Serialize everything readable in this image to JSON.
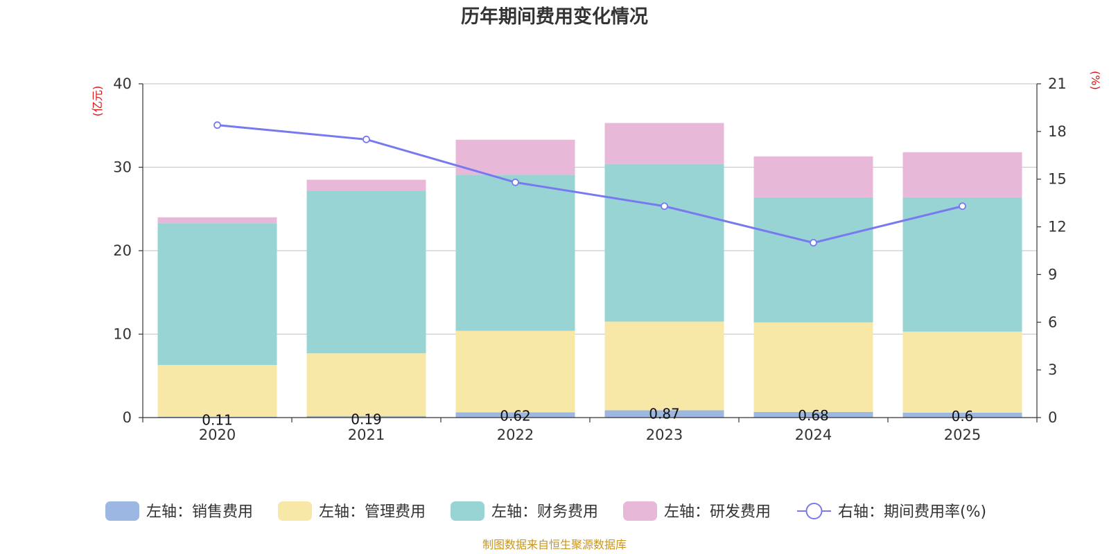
{
  "chart_data": {
    "type": "bar",
    "stacked": true,
    "title": "历年期间费用变化情况",
    "categories": [
      "2020",
      "2021",
      "2022",
      "2023",
      "2024",
      "2025"
    ],
    "left_axis": {
      "unit": "(亿元)",
      "ylim": [
        0,
        40
      ],
      "ticks": [
        0,
        10,
        20,
        30,
        40
      ]
    },
    "right_axis": {
      "unit": "(%)",
      "ylim": [
        0,
        21
      ],
      "ticks": [
        0,
        3,
        6,
        9,
        12,
        15,
        18,
        21
      ]
    },
    "series": [
      {
        "name": "左轴：销售费用",
        "axis": "left",
        "kind": "bar",
        "color": "#9bb7e2",
        "values": [
          0.11,
          0.19,
          0.62,
          0.87,
          0.68,
          0.6
        ],
        "labels": [
          "0.11",
          "0.19",
          "0.62",
          "0.87",
          "0.68",
          "0.6"
        ]
      },
      {
        "name": "左轴：管理费用",
        "axis": "left",
        "kind": "bar",
        "color": "#f8e8a8",
        "values": [
          6.19,
          7.51,
          9.78,
          10.63,
          10.72,
          9.7
        ]
      },
      {
        "name": "左轴：财务费用",
        "axis": "left",
        "kind": "bar",
        "color": "#98d4d4",
        "values": [
          17.0,
          19.5,
          18.7,
          18.9,
          15.0,
          16.1
        ]
      },
      {
        "name": "左轴：研发费用",
        "axis": "left",
        "kind": "bar",
        "color": "#e8b8d8",
        "values": [
          0.7,
          1.3,
          4.2,
          4.9,
          4.9,
          5.4
        ]
      },
      {
        "name": "右轴：期间费用率(%)",
        "axis": "right",
        "kind": "line",
        "color": "#7879ef",
        "values": [
          18.4,
          17.5,
          14.8,
          13.3,
          11.0,
          13.3
        ]
      }
    ],
    "legend_position": "bottom",
    "grid": true
  },
  "source": "制图数据来自恒生聚源数据库"
}
